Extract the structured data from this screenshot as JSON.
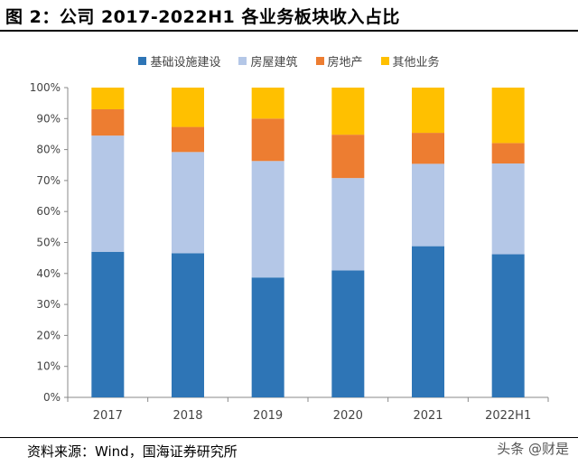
{
  "title": "图 2：公司 2017-2022H1 各业务板块收入占比",
  "source": "资料来源：Wind，国海证券研究所",
  "watermark": "头条 @财是",
  "chart_data": {
    "type": "bar",
    "stacked": true,
    "categories": [
      "2017",
      "2018",
      "2019",
      "2020",
      "2021",
      "2022H1"
    ],
    "series": [
      {
        "name": "基础设施建设",
        "color": "#2E75B6",
        "values": [
          47,
          46.5,
          38.7,
          41,
          48.8,
          46.2
        ]
      },
      {
        "name": "房屋建筑",
        "color": "#B4C7E7",
        "values": [
          37.5,
          32.7,
          37.6,
          29.8,
          26.6,
          29.3
        ]
      },
      {
        "name": "房地产",
        "color": "#ED7D31",
        "values": [
          8.5,
          8.1,
          13.7,
          14,
          10,
          6.6
        ]
      },
      {
        "name": "其他业务",
        "color": "#FFC000",
        "values": [
          7,
          12.7,
          10,
          15.2,
          14.6,
          17.9
        ]
      }
    ],
    "ylim": [
      0,
      100
    ],
    "yticks": [
      "0%",
      "10%",
      "20%",
      "30%",
      "40%",
      "50%",
      "60%",
      "70%",
      "80%",
      "90%",
      "100%"
    ],
    "legend_position": "top",
    "grid": false
  }
}
